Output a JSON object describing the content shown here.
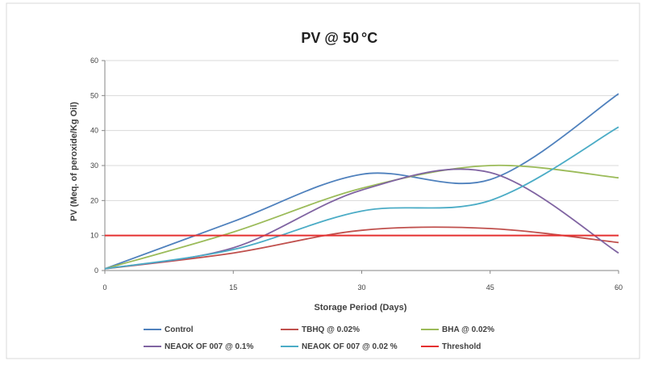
{
  "chart_data": {
    "type": "line",
    "title": "PV @ 50",
    "title_suffix": "°C",
    "xlabel": "Storage Period (Days)",
    "ylabel": "PV (Meq. of peroxide/Kg Oil)",
    "x": [
      0,
      15,
      30,
      45,
      60
    ],
    "xticks": [
      "0",
      "15",
      "30",
      "45",
      "60"
    ],
    "yticks": [
      "0",
      "10",
      "20",
      "30",
      "40",
      "50",
      "60"
    ],
    "xlim": [
      0,
      60
    ],
    "ylim": [
      0,
      60
    ],
    "grid": "horizontal",
    "legend_position": "bottom",
    "series": [
      {
        "name": "Control",
        "color": "#4f81bd",
        "values": [
          0.5,
          14,
          27.5,
          26,
          50.5
        ]
      },
      {
        "name": "TBHQ @ 0.02%",
        "color": "#c0504d",
        "values": [
          0.5,
          5,
          11.5,
          12,
          8
        ]
      },
      {
        "name": "BHA @ 0.02%",
        "color": "#9bbb59",
        "values": [
          0.5,
          11,
          23.5,
          30,
          26.5
        ]
      },
      {
        "name": "NEAOK OF 007 @ 0.1%",
        "color": "#8064a2",
        "values": [
          0.5,
          6.5,
          23,
          28,
          5
        ]
      },
      {
        "name": "NEAOK OF 007 @ 0.02 %",
        "color": "#4bacc6",
        "values": [
          0.5,
          6,
          17,
          20,
          41
        ]
      },
      {
        "name": "Threshold",
        "color": "#e53030",
        "values": [
          10,
          10,
          10,
          10,
          10
        ]
      }
    ]
  }
}
